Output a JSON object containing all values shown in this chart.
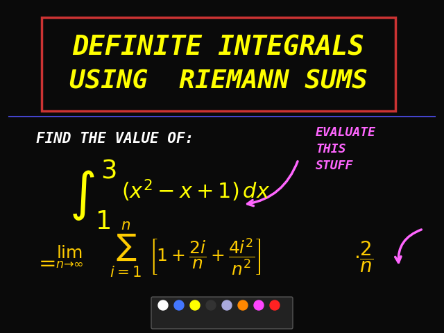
{
  "bg_color": "#0a0a0a",
  "title_box_color": "#cc3333",
  "title_text": "DEFINITE INTEGRALS\nUSING RIEMANN SUMS",
  "title_color": "#ffff00",
  "divider_color": "#4444cc",
  "find_text": "FIND THE VALUE OF:",
  "find_color": "#ffffff",
  "integral_color": "#ffff00",
  "limit_color": "#ffcc00",
  "annotation_color": "#ff66ff",
  "annotation_text": "EVALUATE\nTHIS\nSTUFF"
}
